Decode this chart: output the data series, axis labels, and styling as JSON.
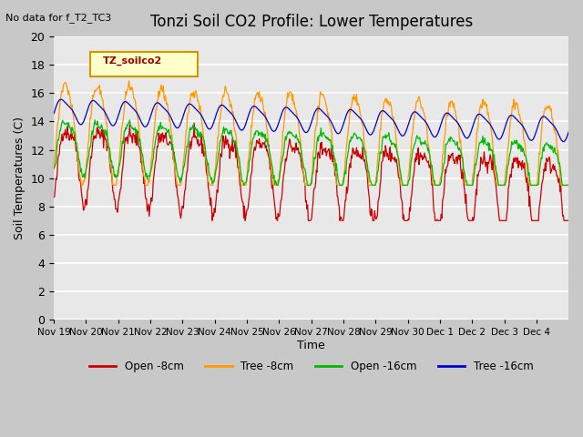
{
  "title": "Tonzi Soil CO2 Profile: Lower Temperatures",
  "subtitle": "No data for f_T2_TC3",
  "xlabel": "Time",
  "ylabel": "Soil Temperatures (C)",
  "ylim": [
    0,
    20
  ],
  "yticks": [
    0,
    2,
    4,
    6,
    8,
    10,
    12,
    14,
    16,
    18,
    20
  ],
  "xtick_labels": [
    "Nov 19",
    "Nov 20",
    "Nov 21",
    "Nov 22",
    "Nov 23",
    "Nov 24",
    "Nov 25",
    "Nov 26",
    "Nov 27",
    "Nov 28",
    "Nov 29",
    "Nov 30",
    "Dec 1",
    "Dec 2",
    "Dec 3",
    "Dec 4"
  ],
  "legend_label": "TZ_soilco2",
  "bg_color": "#e8e8e8",
  "grid_color": "#ffffff",
  "colors": {
    "open_8cm": "#cc0000",
    "tree_8cm": "#ff9900",
    "open_16cm": "#00bb00",
    "tree_16cm": "#0000cc"
  },
  "legend_entries": [
    "Open -8cm",
    "Tree -8cm",
    "Open -16cm",
    "Tree -16cm"
  ]
}
